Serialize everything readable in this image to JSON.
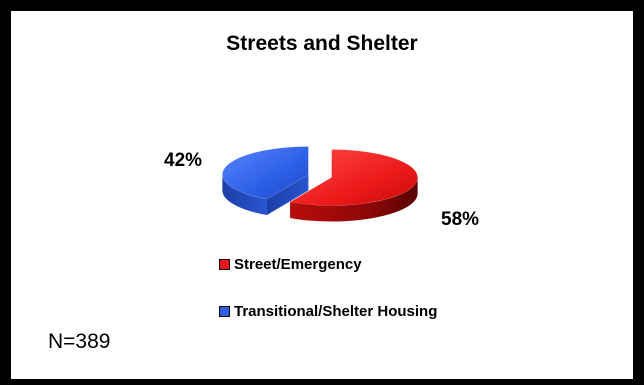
{
  "chart_data": {
    "type": "pie",
    "title": "Streets and Shelter",
    "labels": [
      "Street/Emergency",
      "Transitional/Shelter Housing"
    ],
    "values": [
      58,
      42
    ],
    "value_labels": [
      "58%",
      "42%"
    ],
    "colors": [
      "#e8141a",
      "#2c5fe6"
    ],
    "style": "3d-exploded",
    "legend_position": "bottom"
  },
  "footer": {
    "sample_size": "N=389"
  }
}
